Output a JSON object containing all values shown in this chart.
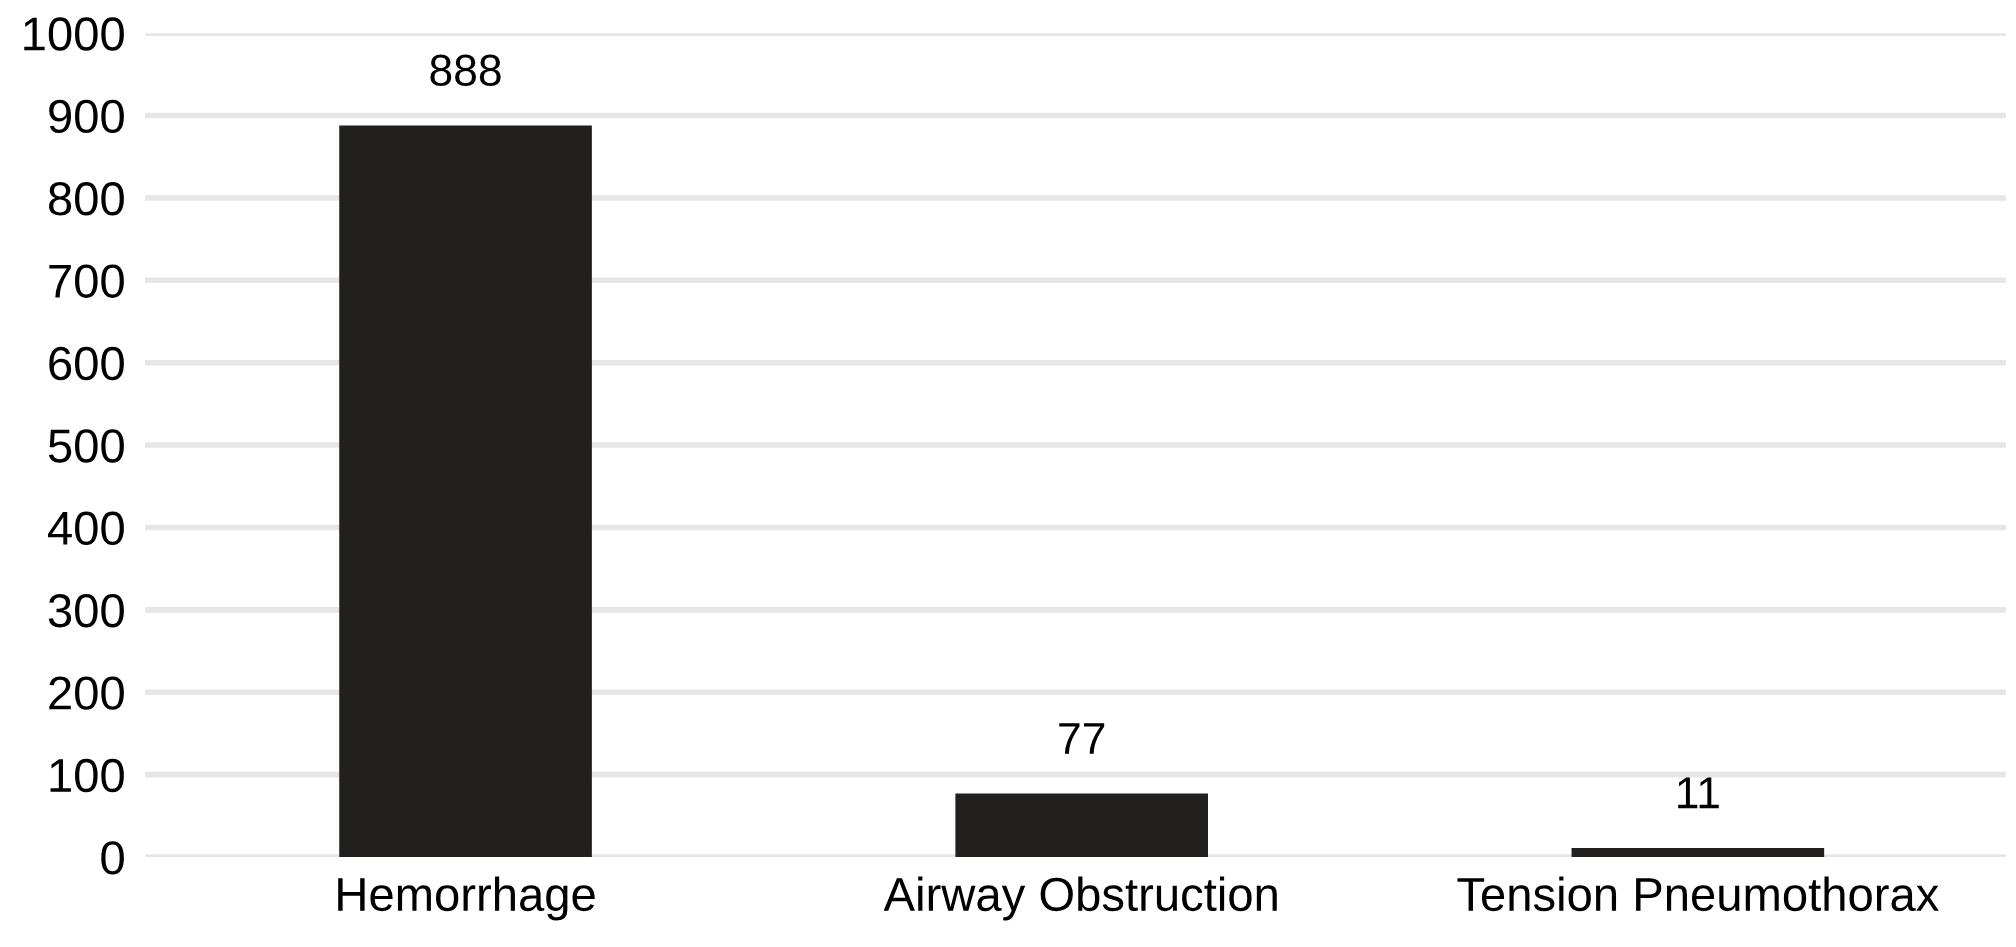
{
  "chart_data": {
    "type": "bar",
    "categories": [
      "Hemorrhage",
      "Airway Obstruction",
      "Tension Pneumothorax"
    ],
    "values": [
      888,
      77,
      11
    ],
    "color": "#22201e",
    "ylim": [
      0,
      1000
    ],
    "yticks": [
      0,
      100,
      200,
      300,
      400,
      500,
      600,
      700,
      800,
      900,
      1000
    ],
    "grid": "y",
    "data_labels": true
  }
}
